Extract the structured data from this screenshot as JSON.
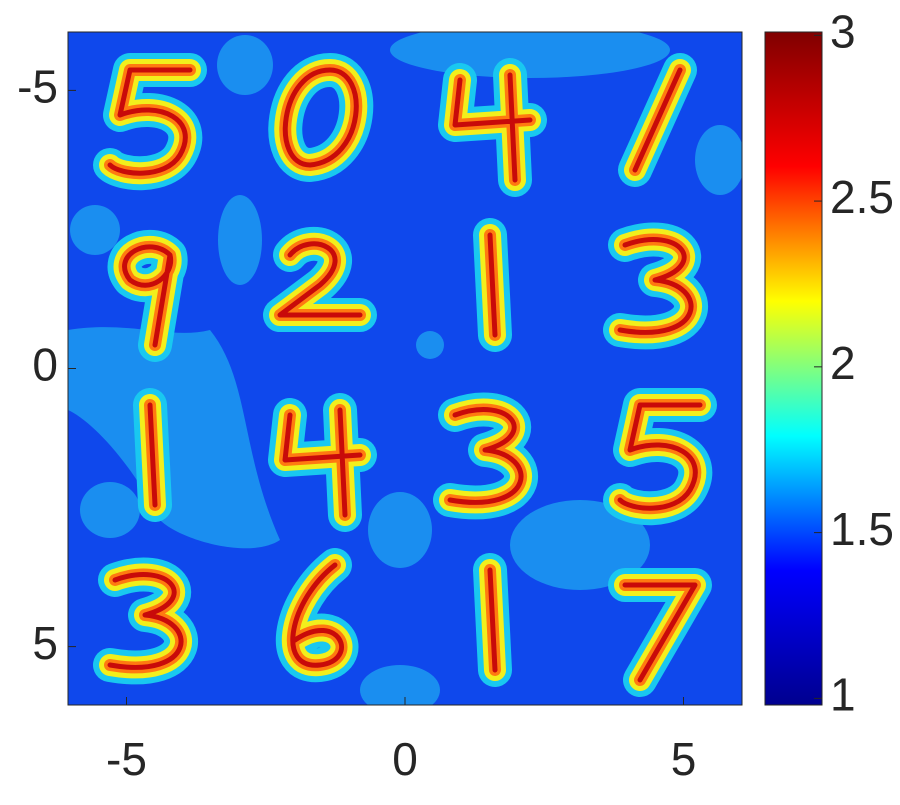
{
  "chart_data": {
    "type": "heatmap",
    "xlim": [
      -6.05,
      6.05
    ],
    "ylim": [
      -6.05,
      6.05
    ],
    "y_reversed": true,
    "xticks": [
      -5,
      0,
      5
    ],
    "yticks": [
      -5,
      0,
      5
    ],
    "clim": [
      0.98,
      3.01
    ],
    "cticks": [
      1,
      1.5,
      2,
      2.5,
      3
    ],
    "colormap": "jet"
  }
}
